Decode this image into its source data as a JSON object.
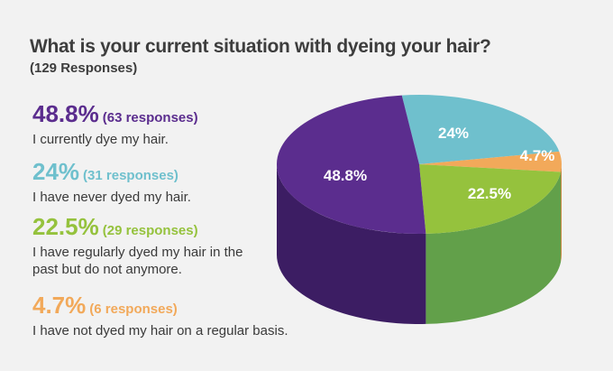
{
  "title": "What is your current situation with dyeing your hair?",
  "subtitle": "(129 Responses)",
  "colors": {
    "purple": "#5b2d8e",
    "teal": "#6fc0cd",
    "green": "#95c23d",
    "orange": "#f2a95a"
  },
  "legend": [
    {
      "pct": "48.8%",
      "responses": "(63 responses)",
      "desc": "I currently dye my hair.",
      "color": "#5b2d8e"
    },
    {
      "pct": "24%",
      "responses": "(31 responses)",
      "desc": "I have never dyed my hair.",
      "color": "#6fc0cd"
    },
    {
      "pct": "22.5%",
      "responses": "(29 responses)",
      "desc": "I have regularly dyed my hair in the past but do not anymore.",
      "color": "#95c23d"
    },
    {
      "pct": "4.7%",
      "responses": "(6 responses)",
      "desc": "I have not dyed my hair on a regular basis.",
      "color": "#f2a95a"
    }
  ],
  "chart_data": {
    "type": "pie",
    "title": "What is your current situation with dyeing your hair?",
    "subtitle": "(129 Responses)",
    "categories": [
      "I currently dye my hair.",
      "I have never dyed my hair.",
      "I have regularly dyed my hair in the past but do not anymore.",
      "I have not dyed my hair on a regular basis."
    ],
    "values": [
      48.8,
      24,
      22.5,
      4.7
    ],
    "counts": [
      63,
      31,
      29,
      6
    ],
    "labels": [
      "48.8%",
      "24%",
      "22.5%",
      "4.7%"
    ],
    "colors": [
      "#5b2d8e",
      "#6fc0cd",
      "#95c23d",
      "#f2a95a"
    ],
    "side_colors": [
      "#3c1d63",
      "#4f9aa6",
      "#62a04a",
      "#c9843c"
    ],
    "style": "3d"
  }
}
